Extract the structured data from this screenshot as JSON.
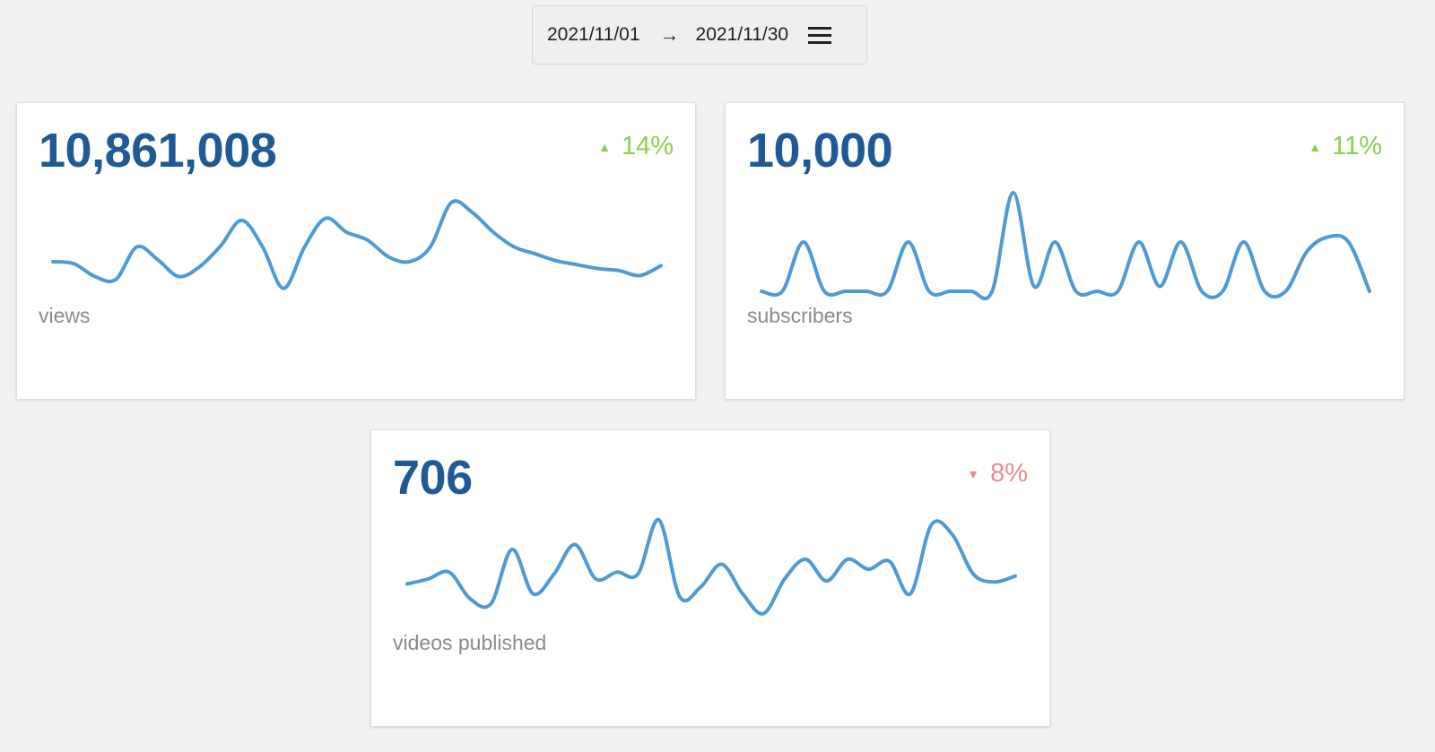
{
  "date_range": {
    "start": "2021/11/01",
    "arrow": "→",
    "end": "2021/11/30",
    "menu_icon": "hamburger-menu-icon"
  },
  "colors": {
    "value": "#1f5a96",
    "line": "#4e9ad4",
    "up": "#8ccf4d",
    "down": "#ef8a8a",
    "label": "#8a8a8a"
  },
  "cards": [
    {
      "id": "views",
      "value": "10,861,008",
      "delta": "14%",
      "direction": "up",
      "arrow": "▲",
      "label": "views",
      "series": [
        0.3,
        0.28,
        0.15,
        0.12,
        0.45,
        0.32,
        0.15,
        0.25,
        0.46,
        0.72,
        0.45,
        0.03,
        0.45,
        0.74,
        0.6,
        0.52,
        0.35,
        0.3,
        0.45,
        0.9,
        0.8,
        0.6,
        0.45,
        0.38,
        0.31,
        0.27,
        0.23,
        0.21,
        0.16,
        0.26
      ]
    },
    {
      "id": "subscribers",
      "value": "10,000",
      "delta": "11%",
      "direction": "up",
      "arrow": "▲",
      "label": "subscribers",
      "series": [
        0,
        0,
        0.5,
        0,
        0,
        0,
        0,
        0.5,
        0,
        0,
        0,
        0,
        1,
        0.05,
        0.5,
        0,
        0,
        0,
        0.5,
        0.05,
        0.5,
        0,
        0,
        0.5,
        0,
        0,
        0.4,
        0.55,
        0.5,
        0
      ]
    },
    {
      "id": "videos-published",
      "value": "706",
      "delta": "8%",
      "direction": "down",
      "arrow": "▼",
      "label": "videos published",
      "series": [
        0.35,
        0.4,
        0.47,
        0.2,
        0.15,
        0.7,
        0.25,
        0.45,
        0.75,
        0.4,
        0.47,
        0.45,
        1,
        0.22,
        0.32,
        0.55,
        0.25,
        0.05,
        0.4,
        0.6,
        0.38,
        0.6,
        0.5,
        0.58,
        0.25,
        0.95,
        0.85,
        0.45,
        0.37,
        0.43
      ]
    }
  ]
}
